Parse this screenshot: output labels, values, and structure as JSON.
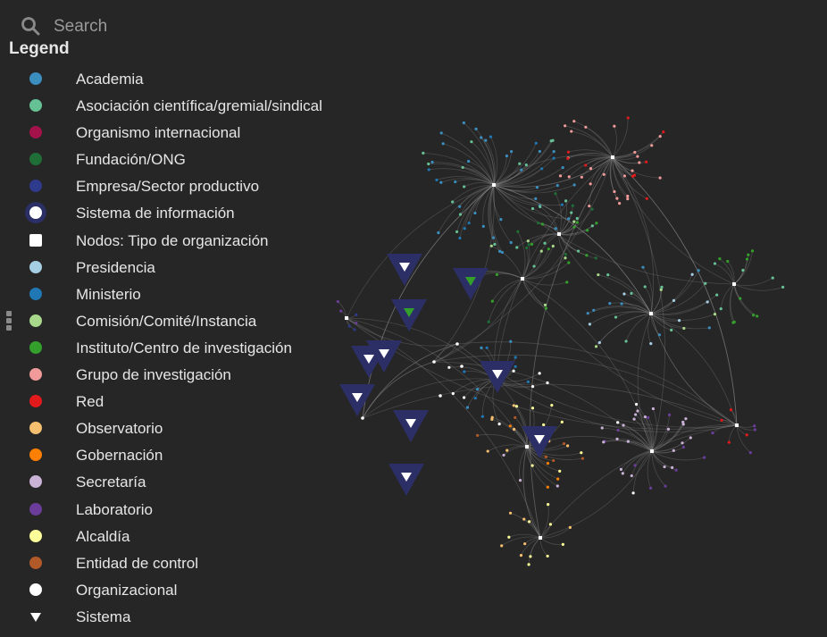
{
  "search": {
    "placeholder": "Search",
    "icon": "search-icon"
  },
  "legend": {
    "title": "Legend",
    "items": [
      {
        "label": "Academia",
        "shape": "dot",
        "color": "#3a8fbf"
      },
      {
        "label": "Asociación científica/gremial/sindical",
        "shape": "dot",
        "color": "#66c295"
      },
      {
        "label": "Organismo internacional",
        "shape": "dot",
        "color": "#a3124a"
      },
      {
        "label": "Fundación/ONG",
        "shape": "dot",
        "color": "#1f6e37"
      },
      {
        "label": "Empresa/Sector productivo",
        "shape": "dot",
        "color": "#2e3a8c"
      },
      {
        "label": "Sistema de información",
        "shape": "dot-halo",
        "color": "#ffffff"
      },
      {
        "label": "Nodos: Tipo de organización",
        "shape": "square",
        "color": "#ffffff"
      },
      {
        "label": "Presidencia",
        "shape": "dot",
        "color": "#a6cee3"
      },
      {
        "label": "Ministerio",
        "shape": "dot",
        "color": "#1f78b4"
      },
      {
        "label": "Comisión/Comité/Instancia",
        "shape": "dot",
        "color": "#a8d88a"
      },
      {
        "label": "Instituto/Centro de investigación",
        "shape": "dot",
        "color": "#33a02c"
      },
      {
        "label": "Grupo de investigación",
        "shape": "dot",
        "color": "#f09a9a"
      },
      {
        "label": "Red",
        "shape": "dot",
        "color": "#e31a1c"
      },
      {
        "label": "Observatorio",
        "shape": "dot",
        "color": "#f5bf6f"
      },
      {
        "label": "Gobernación",
        "shape": "dot",
        "color": "#ff7f00"
      },
      {
        "label": "Secretaría",
        "shape": "dot",
        "color": "#cab2d6"
      },
      {
        "label": "Laboratorio",
        "shape": "dot",
        "color": "#6a3d9a"
      },
      {
        "label": "Alcaldía",
        "shape": "dot",
        "color": "#ffff99"
      },
      {
        "label": "Entidad de control",
        "shape": "dot",
        "color": "#b15928"
      },
      {
        "label": "Organizacional",
        "shape": "dot",
        "color": "#ffffff"
      },
      {
        "label": "Sistema",
        "shape": "triangle",
        "color": "#ffffff"
      }
    ]
  },
  "colors": {
    "background": "#262626",
    "edge": "#8a8a8a",
    "halo": "#2c2f66"
  }
}
